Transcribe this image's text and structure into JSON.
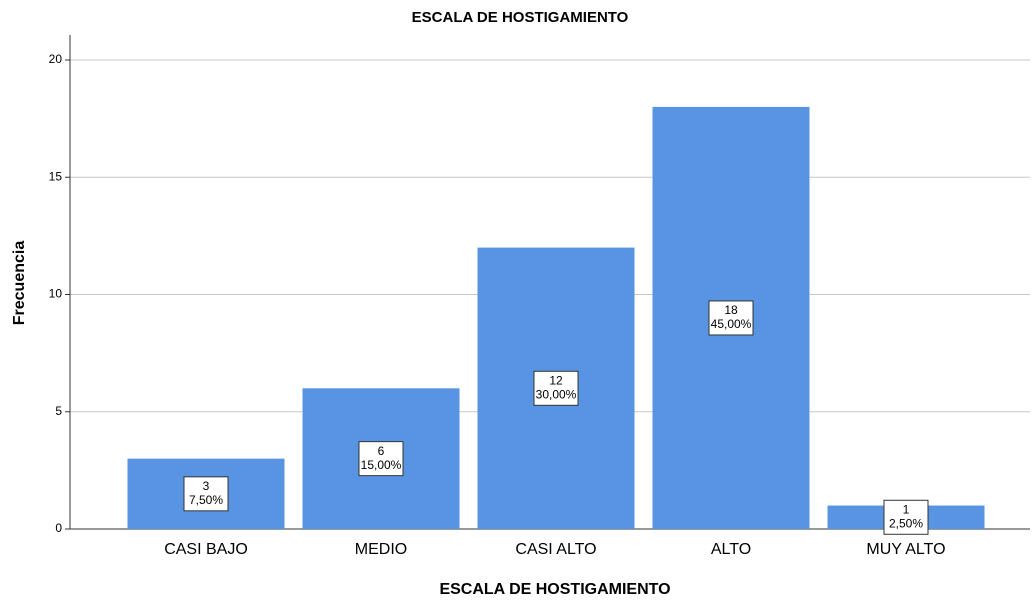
{
  "chart_data": {
    "type": "bar",
    "title": "ESCALA DE HOSTIGAMIENTO",
    "x_label": "ESCALA DE HOSTIGAMIENTO",
    "y_label": "Frecuencia",
    "categories": [
      "CASI BAJO",
      "MEDIO",
      "CASI ALTO",
      "ALTO",
      "MUY ALTO"
    ],
    "values": [
      3,
      6,
      12,
      18,
      1
    ],
    "percent_labels": [
      "7,50%",
      "15,00%",
      "30,00%",
      "45,00%",
      "2,50%"
    ],
    "color": "#5894e2",
    "ylim": [
      0,
      20
    ],
    "yticks": [
      0,
      5,
      10,
      15,
      20
    ],
    "grid": true
  }
}
